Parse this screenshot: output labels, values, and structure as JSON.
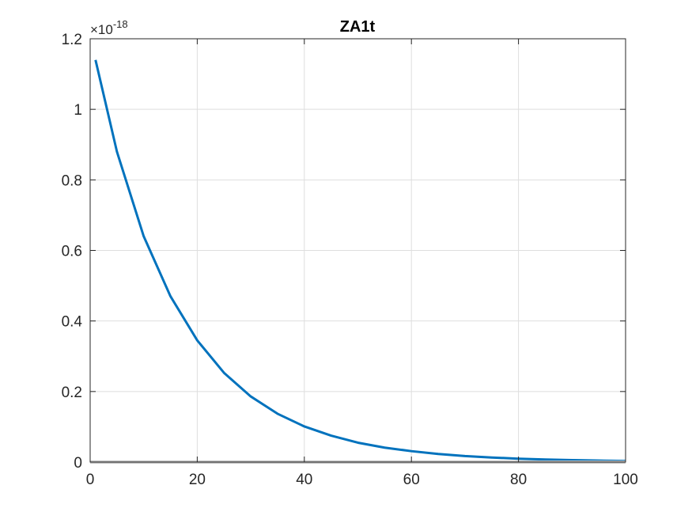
{
  "chart_data": {
    "type": "line",
    "title": "ZA1t",
    "xlabel": "",
    "ylabel": "",
    "xlim": [
      0,
      100
    ],
    "ylim": [
      0,
      1.2
    ],
    "y_exponent_label": "×10",
    "y_exponent_power": "-18",
    "y_exponent_value": 1e-18,
    "grid": true,
    "x_ticks": [
      "0",
      "20",
      "40",
      "60",
      "80",
      "100"
    ],
    "y_ticks": [
      "0",
      "0.2",
      "0.4",
      "0.6",
      "0.8",
      "1",
      "1.2"
    ],
    "series": [
      {
        "color": "#0072BD",
        "x": [
          1,
          5,
          10,
          15,
          20,
          25,
          30,
          35,
          40,
          45,
          50,
          55,
          60,
          65,
          70,
          75,
          80,
          85,
          90,
          95,
          100
        ],
        "y": [
          1.14,
          0.88,
          0.64,
          0.47,
          0.345,
          0.253,
          0.186,
          0.137,
          0.101,
          0.075,
          0.055,
          0.041,
          0.031,
          0.023,
          0.017,
          0.013,
          0.0095,
          0.0072,
          0.0055,
          0.0042,
          0.0032
        ]
      },
      {
        "color": "#C0C0C0",
        "x": [
          0,
          100
        ],
        "y": [
          0,
          0
        ]
      }
    ]
  }
}
